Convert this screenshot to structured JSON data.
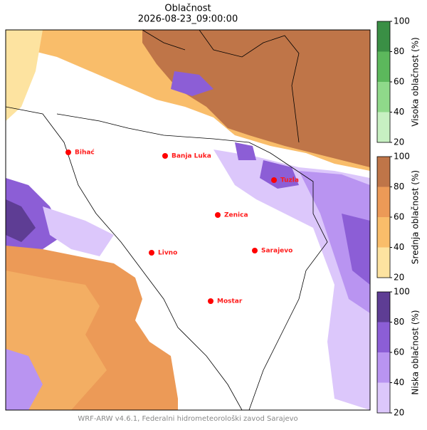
{
  "title": "Oblačnost",
  "subtitle": "2026-08-23_09:00:00",
  "cities": [
    "Bihać",
    "Banja Luka",
    "Tuzla",
    "Zenica",
    "Livno",
    "Sarajevo",
    "Mostar"
  ],
  "colorbars": [
    {
      "label": "Visoka oblačnost (%)",
      "ticks": [
        20,
        40,
        60,
        80,
        100
      ],
      "colors": [
        "#c7f0c2",
        "#8fd98a",
        "#5cb85c",
        "#3a8f45"
      ]
    },
    {
      "label": "Srednja oblačnost (%)",
      "ticks": [
        20,
        40,
        60,
        80,
        100
      ],
      "colors": [
        "#fde3a0",
        "#f9bd6a",
        "#ec9a57",
        "#bf7548"
      ]
    },
    {
      "label": "Niska oblačnost (%)",
      "ticks": [
        20,
        40,
        60,
        80,
        100
      ],
      "colors": [
        "#dcc7fb",
        "#b994f1",
        "#8c5ed6",
        "#5e3d94"
      ]
    }
  ],
  "footer": "WRF-ARW v4.6.1, Federalni hidrometeorološki zavod Sarajevo"
}
